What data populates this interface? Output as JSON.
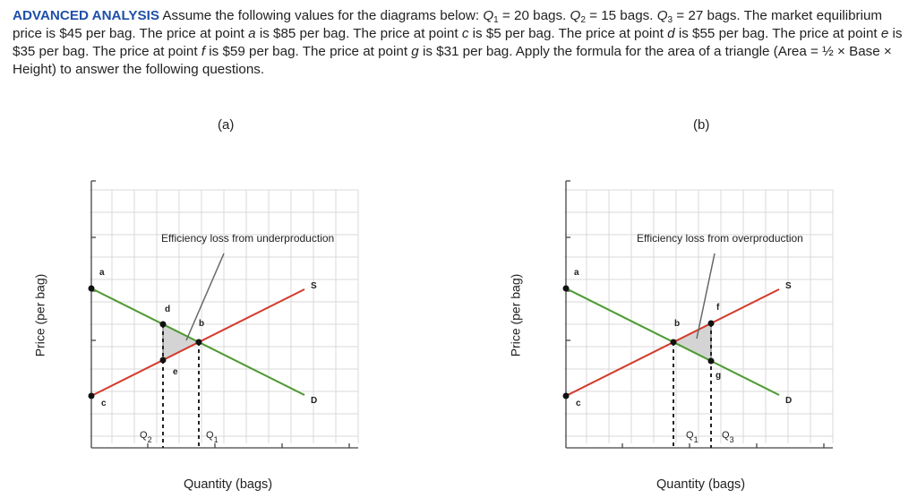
{
  "problem": {
    "tag": "ADVANCED ANALYSIS",
    "s1": " Assume the following values for the diagrams below: ",
    "q1": "Q",
    "q1_sub": "1",
    "s2": " = 20 bags. ",
    "q2": "Q",
    "q2_sub": "2",
    "s3": " = 15 bags. ",
    "q3": "Q",
    "q3_sub": "3",
    "s4": " = 27 bags. The market equilibrium price is $45 per bag. The price at point ",
    "pa": "a",
    "s5": " is $85 per bag. The price at point ",
    "pc": "c",
    "s6": " is $5 per bag. The price at point ",
    "pd": "d",
    "s7": " is $55 per bag. The price at point ",
    "pe": "e",
    "s8": " is $35 per bag. The price at point ",
    "pf": "f",
    "s9": " is $59 per bag. The price at point ",
    "pg": "g",
    "s10": " is $31 per bag. Apply the formula for the area of a triangle (Area = ½ × Base × Height) to answer the following questions."
  },
  "panel_a": {
    "title": "(a)",
    "annotation": "Efficiency loss from underproduction",
    "point_a": "a",
    "point_c": "c",
    "point_d": "d",
    "point_b": "b",
    "point_e": "e",
    "supply": "S",
    "demand": "D",
    "q_left": "Q",
    "q_left_sub": "2",
    "q_right": "Q",
    "q_right_sub": "1",
    "ylabel": "Price (per bag)",
    "xlabel": "Quantity (bags)"
  },
  "panel_b": {
    "title": "(b)",
    "annotation": "Efficiency loss from overproduction",
    "point_a": "a",
    "point_c": "c",
    "point_b": "b",
    "point_f": "f",
    "point_g": "g",
    "supply": "S",
    "demand": "D",
    "q_left": "Q",
    "q_left_sub": "1",
    "q_right": "Q",
    "q_right_sub": "3",
    "ylabel": "Price (per bag)",
    "xlabel": "Quantity (bags)"
  },
  "colors": {
    "supply": "#d33a2c",
    "demand": "#4a9a2e",
    "tag": "#1f4fa8",
    "shade": "#d4d4d4",
    "grid": "#d9d9d9"
  }
}
